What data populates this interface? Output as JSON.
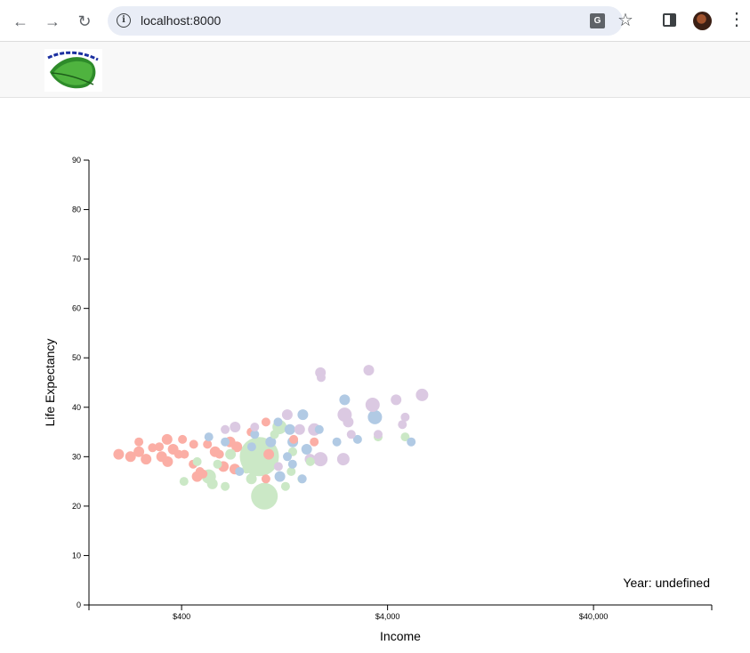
{
  "browser": {
    "url": "localhost:8000",
    "icons": [
      "back-arrow-icon",
      "forward-arrow-icon",
      "reload-icon",
      "info-icon",
      "translate-icon",
      "star-icon",
      "side-panel-icon",
      "profile-avatar",
      "more-menu-icon"
    ]
  },
  "app": {
    "logo_text": "Leaf Project"
  },
  "chart_data": {
    "type": "scatter",
    "title": "",
    "xlabel": "Income",
    "ylabel": "Life Expectancy",
    "x_scale": "log",
    "xlim": [
      142,
      150000
    ],
    "ylim": [
      0,
      90
    ],
    "x_ticks": [
      {
        "value": 400,
        "label": "$400"
      },
      {
        "value": 4000,
        "label": "$4,000"
      },
      {
        "value": 40000,
        "label": "$40,000"
      }
    ],
    "y_ticks": [
      0,
      10,
      20,
      30,
      40,
      50,
      60,
      70,
      80,
      90
    ],
    "annotation": "Year: undefined",
    "grid": false,
    "colors": {
      "pink": "#fbaea5",
      "blue": "#b1cae4",
      "green": "#cbe8c6",
      "purple": "#dbc9e2"
    },
    "points": [
      {
        "income": 198,
        "life": 30.5,
        "group": "pink",
        "size": 6
      },
      {
        "income": 226,
        "life": 30.0,
        "group": "pink",
        "size": 6
      },
      {
        "income": 248,
        "life": 31.0,
        "group": "pink",
        "size": 6
      },
      {
        "income": 269,
        "life": 29.5,
        "group": "pink",
        "size": 6
      },
      {
        "income": 248,
        "life": 33.0,
        "group": "pink",
        "size": 5
      },
      {
        "income": 289,
        "life": 31.8,
        "group": "pink",
        "size": 5
      },
      {
        "income": 312,
        "life": 32.0,
        "group": "pink",
        "size": 5
      },
      {
        "income": 340,
        "life": 33.5,
        "group": "pink",
        "size": 6
      },
      {
        "income": 320,
        "life": 30.0,
        "group": "pink",
        "size": 6
      },
      {
        "income": 342,
        "life": 29.0,
        "group": "pink",
        "size": 6
      },
      {
        "income": 364,
        "life": 31.5,
        "group": "pink",
        "size": 6
      },
      {
        "income": 387,
        "life": 30.5,
        "group": "pink",
        "size": 5
      },
      {
        "income": 413,
        "life": 30.5,
        "group": "pink",
        "size": 5
      },
      {
        "income": 404,
        "life": 33.5,
        "group": "pink",
        "size": 5
      },
      {
        "income": 458,
        "life": 32.5,
        "group": "pink",
        "size": 5
      },
      {
        "income": 476,
        "life": 26.0,
        "group": "pink",
        "size": 6
      },
      {
        "income": 491,
        "life": 27.0,
        "group": "pink",
        "size": 5
      },
      {
        "income": 455,
        "life": 28.5,
        "group": "pink",
        "size": 5
      },
      {
        "income": 582,
        "life": 31.0,
        "group": "pink",
        "size": 6
      },
      {
        "income": 638,
        "life": 28.0,
        "group": "pink",
        "size": 6
      },
      {
        "income": 688,
        "life": 33.0,
        "group": "pink",
        "size": 6
      },
      {
        "income": 742,
        "life": 32.0,
        "group": "pink",
        "size": 6
      },
      {
        "income": 725,
        "life": 27.5,
        "group": "pink",
        "size": 6
      },
      {
        "income": 611,
        "life": 30.5,
        "group": "pink",
        "size": 5
      },
      {
        "income": 870,
        "life": 35.0,
        "group": "pink",
        "size": 5
      },
      {
        "income": 1027,
        "life": 37.0,
        "group": "pink",
        "size": 5
      },
      {
        "income": 1060,
        "life": 30.5,
        "group": "pink",
        "size": 6
      },
      {
        "income": 1027,
        "life": 25.5,
        "group": "pink",
        "size": 5
      },
      {
        "income": 1400,
        "life": 33.5,
        "group": "pink",
        "size": 5
      },
      {
        "income": 1762,
        "life": 33.0,
        "group": "pink",
        "size": 5
      },
      {
        "income": 534,
        "life": 32.5,
        "group": "pink",
        "size": 5
      },
      {
        "income": 508,
        "life": 26.5,
        "group": "pink",
        "size": 5
      },
      {
        "income": 411,
        "life": 25.0,
        "group": "green",
        "size": 5
      },
      {
        "income": 476,
        "life": 29.0,
        "group": "green",
        "size": 5
      },
      {
        "income": 542,
        "life": 26.0,
        "group": "green",
        "size": 8
      },
      {
        "income": 564,
        "life": 24.5,
        "group": "green",
        "size": 6
      },
      {
        "income": 598,
        "life": 28.5,
        "group": "green",
        "size": 5
      },
      {
        "income": 651,
        "life": 24.0,
        "group": "green",
        "size": 5
      },
      {
        "income": 691,
        "life": 30.5,
        "group": "green",
        "size": 6
      },
      {
        "income": 827,
        "life": 27.5,
        "group": "green",
        "size": 5
      },
      {
        "income": 873,
        "life": 25.5,
        "group": "green",
        "size": 6
      },
      {
        "income": 1010,
        "life": 22.0,
        "group": "green",
        "size": 15
      },
      {
        "income": 954,
        "life": 30.0,
        "group": "green",
        "size": 22
      },
      {
        "income": 1131,
        "life": 34.5,
        "group": "green",
        "size": 5
      },
      {
        "income": 1196,
        "life": 36.0,
        "group": "green",
        "size": 8
      },
      {
        "income": 1278,
        "life": 24.0,
        "group": "green",
        "size": 5
      },
      {
        "income": 1362,
        "life": 27.0,
        "group": "green",
        "size": 5
      },
      {
        "income": 1534,
        "life": 25.5,
        "group": "green",
        "size": 5
      },
      {
        "income": 1687,
        "life": 29.0,
        "group": "green",
        "size": 5
      },
      {
        "income": 1385,
        "life": 31.0,
        "group": "green",
        "size": 5
      },
      {
        "income": 3599,
        "life": 34.0,
        "group": "green",
        "size": 5
      },
      {
        "income": 4868,
        "life": 34.0,
        "group": "green",
        "size": 5
      },
      {
        "income": 542,
        "life": 34.0,
        "group": "blue",
        "size": 5
      },
      {
        "income": 651,
        "life": 33.0,
        "group": "blue",
        "size": 5
      },
      {
        "income": 764,
        "life": 27.0,
        "group": "blue",
        "size": 5
      },
      {
        "income": 876,
        "life": 32.0,
        "group": "blue",
        "size": 5
      },
      {
        "income": 906,
        "life": 34.5,
        "group": "blue",
        "size": 5
      },
      {
        "income": 1083,
        "life": 33.0,
        "group": "blue",
        "size": 6
      },
      {
        "income": 1176,
        "life": 37.0,
        "group": "blue",
        "size": 5
      },
      {
        "income": 1200,
        "life": 26.0,
        "group": "blue",
        "size": 6
      },
      {
        "income": 1305,
        "life": 30.0,
        "group": "blue",
        "size": 5
      },
      {
        "income": 1382,
        "life": 28.5,
        "group": "blue",
        "size": 5
      },
      {
        "income": 1386,
        "life": 33.0,
        "group": "blue",
        "size": 6
      },
      {
        "income": 1342,
        "life": 35.5,
        "group": "blue",
        "size": 6
      },
      {
        "income": 1541,
        "life": 25.5,
        "group": "blue",
        "size": 5
      },
      {
        "income": 1619,
        "life": 31.5,
        "group": "blue",
        "size": 6
      },
      {
        "income": 1551,
        "life": 38.5,
        "group": "blue",
        "size": 6
      },
      {
        "income": 1863,
        "life": 35.5,
        "group": "blue",
        "size": 5
      },
      {
        "income": 2268,
        "life": 33.0,
        "group": "blue",
        "size": 5
      },
      {
        "income": 2475,
        "life": 41.5,
        "group": "blue",
        "size": 6
      },
      {
        "income": 2860,
        "life": 33.5,
        "group": "blue",
        "size": 5
      },
      {
        "income": 3473,
        "life": 38.0,
        "group": "blue",
        "size": 8
      },
      {
        "income": 5210,
        "life": 33.0,
        "group": "blue",
        "size": 5
      },
      {
        "income": 651,
        "life": 35.5,
        "group": "purple",
        "size": 5
      },
      {
        "income": 728,
        "life": 36.0,
        "group": "purple",
        "size": 6
      },
      {
        "income": 906,
        "life": 36.0,
        "group": "purple",
        "size": 5
      },
      {
        "income": 1180,
        "life": 28.0,
        "group": "purple",
        "size": 5
      },
      {
        "income": 1303,
        "life": 38.5,
        "group": "purple",
        "size": 6
      },
      {
        "income": 1497,
        "life": 35.5,
        "group": "purple",
        "size": 6
      },
      {
        "income": 1682,
        "life": 29.5,
        "group": "purple",
        "size": 6
      },
      {
        "income": 1762,
        "life": 35.5,
        "group": "purple",
        "size": 7
      },
      {
        "income": 1890,
        "life": 29.5,
        "group": "purple",
        "size": 8
      },
      {
        "income": 1904,
        "life": 46.0,
        "group": "purple",
        "size": 5
      },
      {
        "income": 1890,
        "life": 47.0,
        "group": "purple",
        "size": 6
      },
      {
        "income": 2440,
        "life": 29.5,
        "group": "purple",
        "size": 7
      },
      {
        "income": 2475,
        "life": 38.5,
        "group": "purple",
        "size": 8
      },
      {
        "income": 2577,
        "life": 37.0,
        "group": "purple",
        "size": 6
      },
      {
        "income": 2664,
        "life": 34.5,
        "group": "purple",
        "size": 5
      },
      {
        "income": 3241,
        "life": 47.5,
        "group": "purple",
        "size": 6
      },
      {
        "income": 3383,
        "life": 40.5,
        "group": "purple",
        "size": 8
      },
      {
        "income": 3599,
        "life": 34.5,
        "group": "purple",
        "size": 5
      },
      {
        "income": 4399,
        "life": 41.5,
        "group": "purple",
        "size": 6
      },
      {
        "income": 4868,
        "life": 38.0,
        "group": "purple",
        "size": 5
      },
      {
        "income": 4720,
        "life": 36.5,
        "group": "purple",
        "size": 5
      },
      {
        "income": 5885,
        "life": 42.5,
        "group": "purple",
        "size": 7
      }
    ]
  }
}
